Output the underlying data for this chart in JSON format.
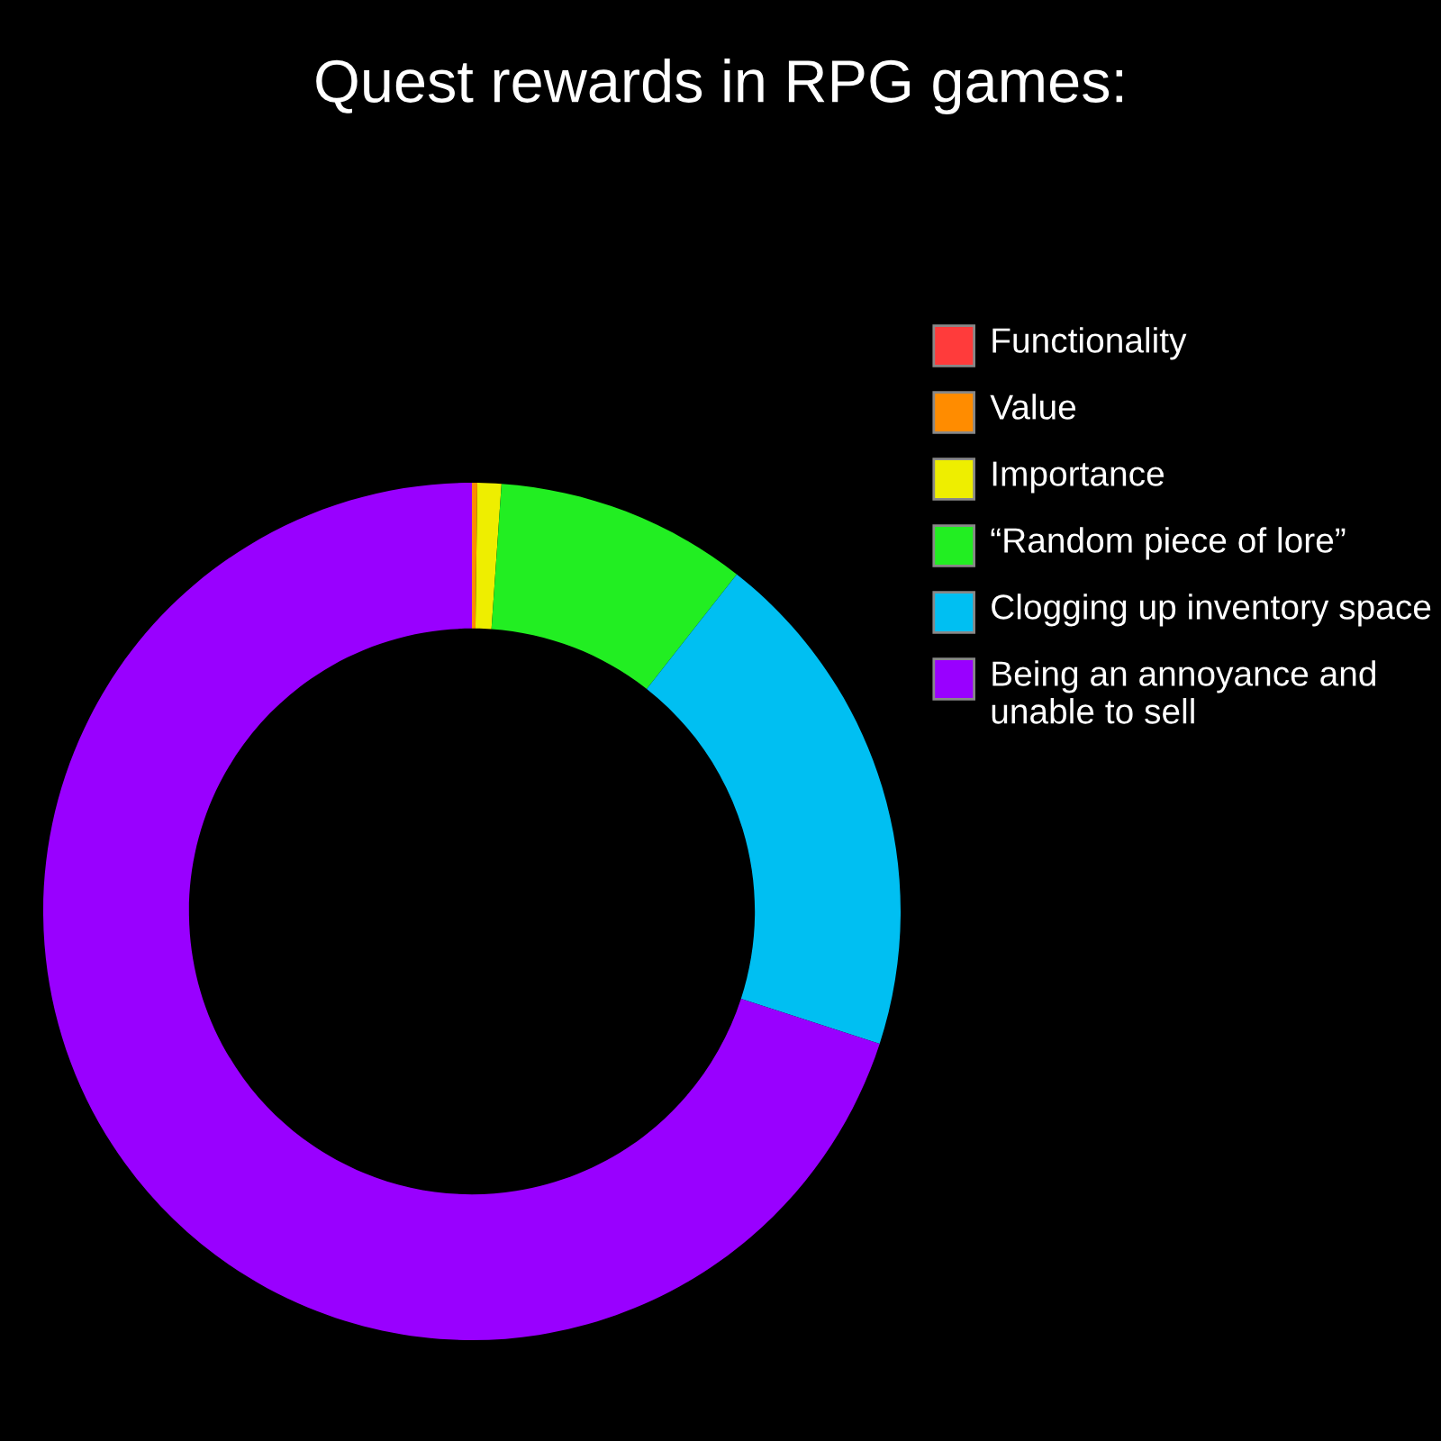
{
  "chart_data": {
    "type": "donut",
    "title": "Quest rewards in RPG games:",
    "categories": [
      "Functionality",
      "Value",
      "Importance",
      "“Random piece of lore”",
      "Clogging up inventory space",
      "Being an annoyance and unable to sell"
    ],
    "values": [
      0,
      0.2,
      0.9,
      9.5,
      19.4,
      70.0
    ],
    "colors": [
      "#ff3b3b",
      "#ff8c00",
      "#eeee00",
      "#22ee22",
      "#00bff2",
      "#9900ff"
    ],
    "legend": "right"
  }
}
